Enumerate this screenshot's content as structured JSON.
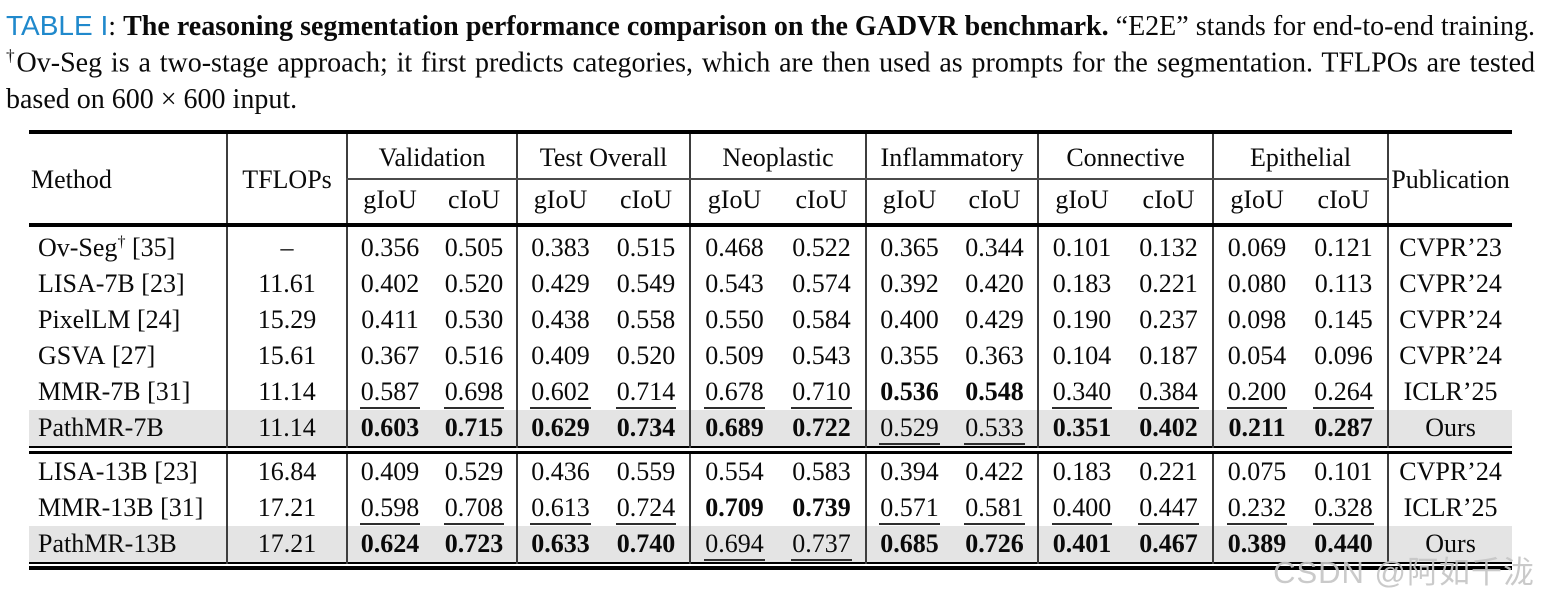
{
  "caption": {
    "label": "TABLE I",
    "sep": ": ",
    "bold_text": "The reasoning segmentation performance comparison on the GADVR benchmark.",
    "text_1": " “E2E” stands for end-to-end training. ",
    "dagger": "†",
    "text_2": "Ov-Seg is a two-stage approach; it first predicts categories, which are then used as prompts for the segmentation. TFLPOs are tested based on 600 × 600 input."
  },
  "colors": {
    "table_label_blue": "#2089cc",
    "row_highlight_gray": "#e4e4e4",
    "watermark_gray": "#c6c6c6"
  },
  "table": {
    "header": {
      "method": "Method",
      "tflops": "TFLOPs",
      "groups": [
        "Validation",
        "Test Overall",
        "Neoplastic",
        "Inflammatory",
        "Connective",
        "Epithelial"
      ],
      "sub_giou": "gIoU",
      "sub_ciou": "cIoU",
      "publication": "Publication"
    },
    "groups": [
      [
        {
          "method": {
            "name": "Ov-Seg",
            "sup": "†",
            "ref": "[35]"
          },
          "tflops": "–",
          "values": [
            {
              "v": "0.356",
              "s": "n"
            },
            {
              "v": "0.505",
              "s": "n"
            },
            {
              "v": "0.383",
              "s": "n"
            },
            {
              "v": "0.515",
              "s": "n"
            },
            {
              "v": "0.468",
              "s": "n"
            },
            {
              "v": "0.522",
              "s": "n"
            },
            {
              "v": "0.365",
              "s": "n"
            },
            {
              "v": "0.344",
              "s": "n"
            },
            {
              "v": "0.101",
              "s": "n"
            },
            {
              "v": "0.132",
              "s": "n"
            },
            {
              "v": "0.069",
              "s": "n"
            },
            {
              "v": "0.121",
              "s": "n"
            }
          ],
          "pub": "CVPR’23",
          "highlight": false
        },
        {
          "method": {
            "name": "LISA-7B",
            "sup": "",
            "ref": "[23]"
          },
          "tflops": "11.61",
          "values": [
            {
              "v": "0.402",
              "s": "n"
            },
            {
              "v": "0.520",
              "s": "n"
            },
            {
              "v": "0.429",
              "s": "n"
            },
            {
              "v": "0.549",
              "s": "n"
            },
            {
              "v": "0.543",
              "s": "n"
            },
            {
              "v": "0.574",
              "s": "n"
            },
            {
              "v": "0.392",
              "s": "n"
            },
            {
              "v": "0.420",
              "s": "n"
            },
            {
              "v": "0.183",
              "s": "n"
            },
            {
              "v": "0.221",
              "s": "n"
            },
            {
              "v": "0.080",
              "s": "n"
            },
            {
              "v": "0.113",
              "s": "n"
            }
          ],
          "pub": "CVPR’24",
          "highlight": false
        },
        {
          "method": {
            "name": "PixelLM",
            "sup": "",
            "ref": "[24]"
          },
          "tflops": "15.29",
          "values": [
            {
              "v": "0.411",
              "s": "n"
            },
            {
              "v": "0.530",
              "s": "n"
            },
            {
              "v": "0.438",
              "s": "n"
            },
            {
              "v": "0.558",
              "s": "n"
            },
            {
              "v": "0.550",
              "s": "n"
            },
            {
              "v": "0.584",
              "s": "n"
            },
            {
              "v": "0.400",
              "s": "n"
            },
            {
              "v": "0.429",
              "s": "n"
            },
            {
              "v": "0.190",
              "s": "n"
            },
            {
              "v": "0.237",
              "s": "n"
            },
            {
              "v": "0.098",
              "s": "n"
            },
            {
              "v": "0.145",
              "s": "n"
            }
          ],
          "pub": "CVPR’24",
          "highlight": false
        },
        {
          "method": {
            "name": "GSVA",
            "sup": "",
            "ref": "[27]"
          },
          "tflops": "15.61",
          "values": [
            {
              "v": "0.367",
              "s": "n"
            },
            {
              "v": "0.516",
              "s": "n"
            },
            {
              "v": "0.409",
              "s": "n"
            },
            {
              "v": "0.520",
              "s": "n"
            },
            {
              "v": "0.509",
              "s": "n"
            },
            {
              "v": "0.543",
              "s": "n"
            },
            {
              "v": "0.355",
              "s": "n"
            },
            {
              "v": "0.363",
              "s": "n"
            },
            {
              "v": "0.104",
              "s": "n"
            },
            {
              "v": "0.187",
              "s": "n"
            },
            {
              "v": "0.054",
              "s": "n"
            },
            {
              "v": "0.096",
              "s": "n"
            }
          ],
          "pub": "CVPR’24",
          "highlight": false
        },
        {
          "method": {
            "name": "MMR-7B",
            "sup": "",
            "ref": "[31]"
          },
          "tflops": "11.14",
          "values": [
            {
              "v": "0.587",
              "s": "u"
            },
            {
              "v": "0.698",
              "s": "u"
            },
            {
              "v": "0.602",
              "s": "u"
            },
            {
              "v": "0.714",
              "s": "u"
            },
            {
              "v": "0.678",
              "s": "u"
            },
            {
              "v": "0.710",
              "s": "u"
            },
            {
              "v": "0.536",
              "s": "b"
            },
            {
              "v": "0.548",
              "s": "b"
            },
            {
              "v": "0.340",
              "s": "u"
            },
            {
              "v": "0.384",
              "s": "u"
            },
            {
              "v": "0.200",
              "s": "u"
            },
            {
              "v": "0.264",
              "s": "u"
            }
          ],
          "pub": "ICLR’25",
          "highlight": false
        },
        {
          "method": {
            "name": "PathMR-7B",
            "sup": "",
            "ref": ""
          },
          "tflops": "11.14",
          "values": [
            {
              "v": "0.603",
              "s": "b"
            },
            {
              "v": "0.715",
              "s": "b"
            },
            {
              "v": "0.629",
              "s": "b"
            },
            {
              "v": "0.734",
              "s": "b"
            },
            {
              "v": "0.689",
              "s": "b"
            },
            {
              "v": "0.722",
              "s": "b"
            },
            {
              "v": "0.529",
              "s": "u"
            },
            {
              "v": "0.533",
              "s": "u"
            },
            {
              "v": "0.351",
              "s": "b"
            },
            {
              "v": "0.402",
              "s": "b"
            },
            {
              "v": "0.211",
              "s": "b"
            },
            {
              "v": "0.287",
              "s": "b"
            }
          ],
          "pub": "Ours",
          "highlight": true
        }
      ],
      [
        {
          "method": {
            "name": "LISA-13B",
            "sup": "",
            "ref": "[23]"
          },
          "tflops": "16.84",
          "values": [
            {
              "v": "0.409",
              "s": "n"
            },
            {
              "v": "0.529",
              "s": "n"
            },
            {
              "v": "0.436",
              "s": "n"
            },
            {
              "v": "0.559",
              "s": "n"
            },
            {
              "v": "0.554",
              "s": "n"
            },
            {
              "v": "0.583",
              "s": "n"
            },
            {
              "v": "0.394",
              "s": "n"
            },
            {
              "v": "0.422",
              "s": "n"
            },
            {
              "v": "0.183",
              "s": "n"
            },
            {
              "v": "0.221",
              "s": "n"
            },
            {
              "v": "0.075",
              "s": "n"
            },
            {
              "v": "0.101",
              "s": "n"
            }
          ],
          "pub": "CVPR’24",
          "highlight": false
        },
        {
          "method": {
            "name": "MMR-13B",
            "sup": "",
            "ref": "[31]"
          },
          "tflops": "17.21",
          "values": [
            {
              "v": "0.598",
              "s": "u"
            },
            {
              "v": "0.708",
              "s": "u"
            },
            {
              "v": "0.613",
              "s": "u"
            },
            {
              "v": "0.724",
              "s": "u"
            },
            {
              "v": "0.709",
              "s": "b"
            },
            {
              "v": "0.739",
              "s": "b"
            },
            {
              "v": "0.571",
              "s": "u"
            },
            {
              "v": "0.581",
              "s": "u"
            },
            {
              "v": "0.400",
              "s": "u"
            },
            {
              "v": "0.447",
              "s": "u"
            },
            {
              "v": "0.232",
              "s": "u"
            },
            {
              "v": "0.328",
              "s": "u"
            }
          ],
          "pub": "ICLR’25",
          "highlight": false
        },
        {
          "method": {
            "name": "PathMR-13B",
            "sup": "",
            "ref": ""
          },
          "tflops": "17.21",
          "values": [
            {
              "v": "0.624",
              "s": "b"
            },
            {
              "v": "0.723",
              "s": "b"
            },
            {
              "v": "0.633",
              "s": "b"
            },
            {
              "v": "0.740",
              "s": "b"
            },
            {
              "v": "0.694",
              "s": "u"
            },
            {
              "v": "0.737",
              "s": "u"
            },
            {
              "v": "0.685",
              "s": "b"
            },
            {
              "v": "0.726",
              "s": "b"
            },
            {
              "v": "0.401",
              "s": "b"
            },
            {
              "v": "0.467",
              "s": "b"
            },
            {
              "v": "0.389",
              "s": "b"
            },
            {
              "v": "0.440",
              "s": "b"
            }
          ],
          "pub": "Ours",
          "highlight": true
        }
      ]
    ]
  },
  "watermark": {
    "text": "CSDN @阿如千泷"
  }
}
